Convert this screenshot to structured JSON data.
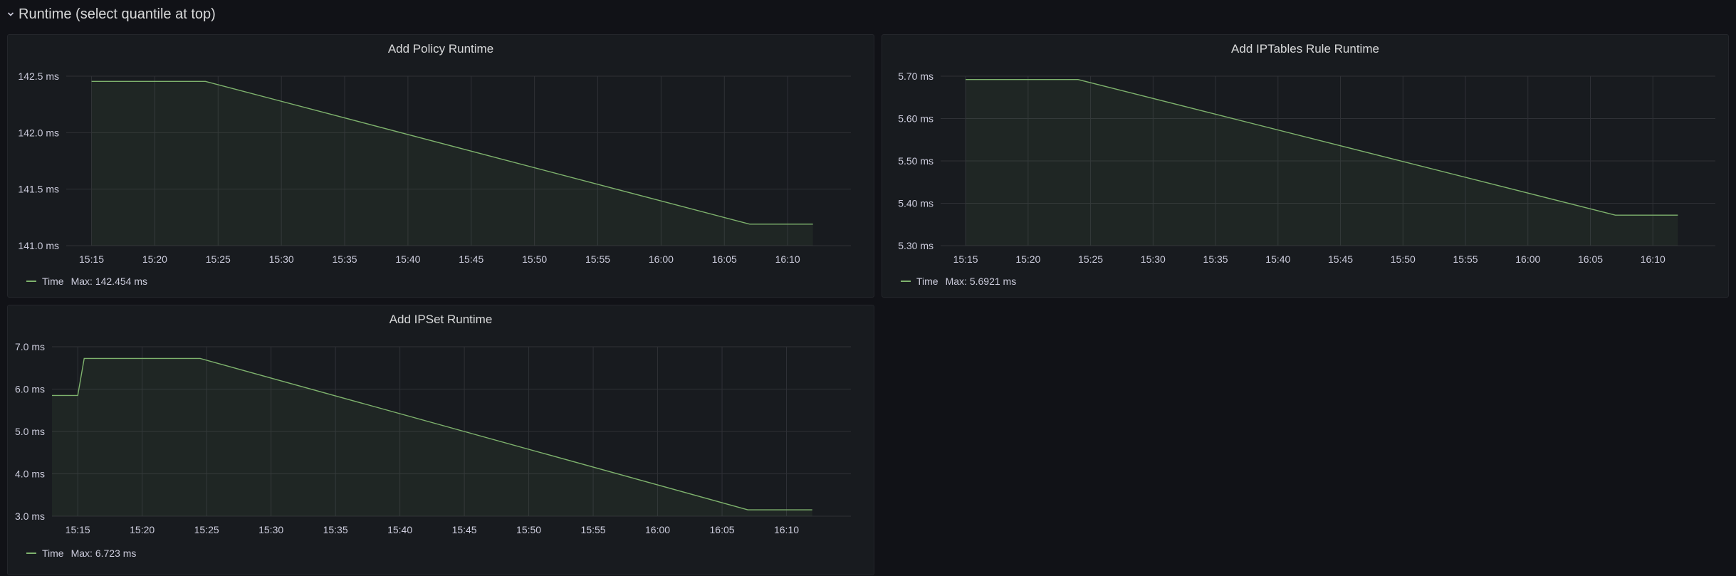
{
  "row": {
    "title": "Runtime (select quantile at top)",
    "chevron_icon": "chevron-down-icon"
  },
  "colors": {
    "series": "#7eb26d",
    "grid": "#2f3136",
    "axis_text": "#ccccdc"
  },
  "chart_data": [
    {
      "id": "policy",
      "type": "area",
      "title": "Add Policy Runtime",
      "xlabel": "",
      "ylabel": "",
      "x_tick_labels": [
        "15:15",
        "15:20",
        "15:25",
        "15:30",
        "15:35",
        "15:40",
        "15:45",
        "15:50",
        "15:55",
        "16:00",
        "16:05",
        "16:10"
      ],
      "y_ticks": [
        141.0,
        141.5,
        142.0,
        142.5
      ],
      "y_tick_labels": [
        "141.0 ms",
        "141.5 ms",
        "142.0 ms",
        "142.5 ms"
      ],
      "ylim": [
        141.0,
        142.5
      ],
      "xlim": [
        "15:13",
        "16:15"
      ],
      "grid": true,
      "legend_position": "bottom-left",
      "series": [
        {
          "name": "Time",
          "legend_stat": "Max: 142.454 ms",
          "x": [
            "15:15",
            "15:24",
            "16:07",
            "16:12"
          ],
          "y": [
            142.454,
            142.454,
            141.19,
            141.19
          ]
        }
      ]
    },
    {
      "id": "iptables",
      "type": "area",
      "title": "Add IPTables Rule Runtime",
      "xlabel": "",
      "ylabel": "",
      "x_tick_labels": [
        "15:15",
        "15:20",
        "15:25",
        "15:30",
        "15:35",
        "15:40",
        "15:45",
        "15:50",
        "15:55",
        "16:00",
        "16:05",
        "16:10"
      ],
      "y_ticks": [
        5.3,
        5.4,
        5.5,
        5.6,
        5.7
      ],
      "y_tick_labels": [
        "5.30 ms",
        "5.40 ms",
        "5.50 ms",
        "5.60 ms",
        "5.70 ms"
      ],
      "ylim": [
        5.3,
        5.7
      ],
      "xlim": [
        "15:13",
        "16:15"
      ],
      "grid": true,
      "legend_position": "bottom-left",
      "series": [
        {
          "name": "Time",
          "legend_stat": "Max: 5.6921 ms",
          "x": [
            "15:15",
            "15:24",
            "16:07",
            "16:12"
          ],
          "y": [
            5.6921,
            5.6921,
            5.372,
            5.372
          ]
        }
      ]
    },
    {
      "id": "ipset",
      "type": "area",
      "title": "Add IPSet Runtime",
      "xlabel": "",
      "ylabel": "",
      "x_tick_labels": [
        "15:15",
        "15:20",
        "15:25",
        "15:30",
        "15:35",
        "15:40",
        "15:45",
        "15:50",
        "15:55",
        "16:00",
        "16:05",
        "16:10"
      ],
      "y_ticks": [
        3.0,
        4.0,
        5.0,
        6.0,
        7.0
      ],
      "y_tick_labels": [
        "3.0 ms",
        "4.0 ms",
        "5.0 ms",
        "6.0 ms",
        "7.0 ms"
      ],
      "ylim": [
        3.0,
        7.0
      ],
      "xlim": [
        "15:13",
        "16:15"
      ],
      "grid": true,
      "legend_position": "bottom-left",
      "series": [
        {
          "name": "Time",
          "legend_stat": "Max: 6.723 ms",
          "x": [
            "15:13",
            "15:15",
            "15:15.5",
            "15:24.5",
            "16:07",
            "16:12"
          ],
          "y": [
            5.85,
            5.85,
            6.723,
            6.723,
            3.15,
            3.15
          ]
        }
      ]
    }
  ]
}
